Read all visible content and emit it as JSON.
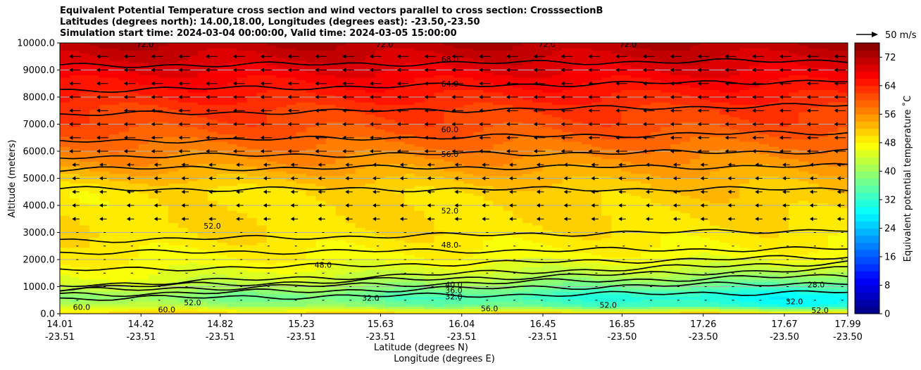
{
  "chart_data": {
    "type": "heatmap",
    "title_lines": [
      "Equivalent Potential Temperature cross section and wind vectors parallel to cross section: CrosssectionB",
      "Latitudes (degrees north): 14.00,18.00, Longitudes (degrees east): -23.50,-23.50",
      "Simulation start time: 2024-03-04 00:00:00, Valid time: 2024-03-05 15:00:00"
    ],
    "ylabel": "Altitude (meters)",
    "xlabel_lat": "Latitude (degrees N)",
    "xlabel_lon": "Longitude (degrees E)",
    "x_ticks_lat": [
      "14.01",
      "14.42",
      "14.82",
      "15.23",
      "15.63",
      "16.04",
      "16.45",
      "16.85",
      "17.26",
      "17.67",
      "17.99"
    ],
    "x_ticks_lon": [
      "-23.51",
      "-23.51",
      "-23.51",
      "-23.51",
      "-23.51",
      "-23.51",
      "-23.51",
      "-23.50",
      "-23.50",
      "-23.50",
      "-23.50"
    ],
    "x_tick_values": [
      14.01,
      14.42,
      14.82,
      15.23,
      15.63,
      16.04,
      16.45,
      16.85,
      17.26,
      17.67,
      17.99
    ],
    "xlim": [
      14.01,
      17.99
    ],
    "y_ticks": [
      "0.0",
      "1000.0",
      "2000.0",
      "3000.0",
      "4000.0",
      "5000.0",
      "6000.0",
      "7000.0",
      "8000.0",
      "9000.0",
      "10000.0"
    ],
    "ylim": [
      0,
      10000
    ],
    "grid": true,
    "colorbar": {
      "label": "Equivalent potential temperature ˚C",
      "ticks": [
        "0",
        "8",
        "16",
        "24",
        "32",
        "40",
        "48",
        "56",
        "64",
        "72"
      ],
      "range": [
        0,
        76
      ]
    },
    "quiver_key": "50 m/s",
    "theta_e_profile": {
      "altitudes_m": [
        0,
        300,
        600,
        800,
        1000,
        1300,
        1600,
        2000,
        2500,
        3000,
        3500,
        4000,
        4500,
        5000,
        5500,
        6000,
        6500,
        7000,
        7500,
        8000,
        8500,
        9000,
        9500,
        10000
      ],
      "values_south_C": [
        52,
        44,
        40,
        42,
        44,
        46,
        47,
        48,
        49,
        50,
        50,
        49,
        49,
        52,
        55,
        57,
        59,
        61,
        62,
        64,
        66,
        68,
        70,
        72
      ],
      "values_north_C": [
        52,
        30,
        28,
        30,
        34,
        38,
        42,
        46,
        48,
        49,
        50,
        51,
        52,
        53,
        55,
        57,
        59,
        61,
        62,
        64,
        66,
        68,
        70,
        72
      ]
    },
    "contour_labels": [
      {
        "text": "72.0",
        "lat": 14.44,
        "alt": 9950
      },
      {
        "text": "72.0",
        "lat": 15.65,
        "alt": 9950
      },
      {
        "text": "72.0",
        "lat": 16.47,
        "alt": 9950
      },
      {
        "text": "72.0",
        "lat": 16.88,
        "alt": 9950
      },
      {
        "text": "68.0",
        "lat": 15.98,
        "alt": 9400
      },
      {
        "text": "64.0",
        "lat": 15.98,
        "alt": 8500
      },
      {
        "text": "60.0",
        "lat": 15.98,
        "alt": 6800
      },
      {
        "text": "56.0",
        "lat": 15.98,
        "alt": 5900
      },
      {
        "text": "52.0",
        "lat": 15.98,
        "alt": 3800
      },
      {
        "text": "52.0",
        "lat": 14.78,
        "alt": 3250
      },
      {
        "text": "48.0",
        "lat": 15.98,
        "alt": 2550
      },
      {
        "text": "48.0",
        "lat": 15.34,
        "alt": 1800
      },
      {
        "text": "40.0",
        "lat": 16.0,
        "alt": 1080
      },
      {
        "text": "36.0",
        "lat": 16.0,
        "alt": 870
      },
      {
        "text": "32.0",
        "lat": 16.0,
        "alt": 640
      },
      {
        "text": "32.0",
        "lat": 15.58,
        "alt": 590
      },
      {
        "text": "52.0",
        "lat": 14.68,
        "alt": 420
      },
      {
        "text": "52.0",
        "lat": 16.78,
        "alt": 320
      },
      {
        "text": "52.0",
        "lat": 17.85,
        "alt": 130
      },
      {
        "text": "56.0",
        "lat": 16.18,
        "alt": 200
      },
      {
        "text": "60.0",
        "lat": 14.12,
        "alt": 250
      },
      {
        "text": "60.0",
        "lat": 14.55,
        "alt": 150
      },
      {
        "text": "28.0",
        "lat": 17.83,
        "alt": 1080
      },
      {
        "text": "32.0",
        "lat": 17.72,
        "alt": 450
      }
    ]
  },
  "colors": {
    "contour": "#000000",
    "arrow": "#000000",
    "grid": "#b0b0b0"
  }
}
